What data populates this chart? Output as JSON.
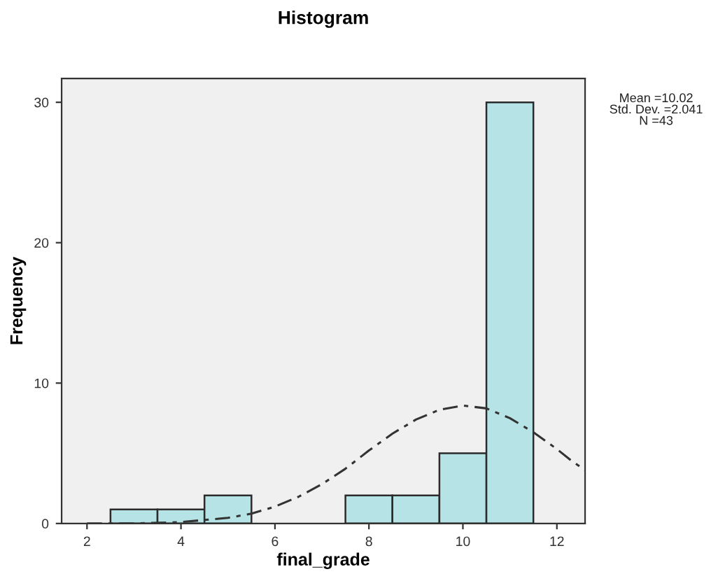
{
  "chart_data": {
    "type": "histogram",
    "title": "Histogram",
    "xlabel": "final_grade",
    "ylabel": "Frequency",
    "bins": [
      2.5,
      3.5,
      4.5,
      5.5,
      6.5,
      7.5,
      8.5,
      9.5,
      10.5,
      11.5
    ],
    "values": [
      1,
      1,
      2,
      0,
      0,
      2,
      2,
      5,
      30
    ],
    "color": "#b6e4e6",
    "series": [
      {
        "type": "line",
        "color": "#333333",
        "line_style": "dashed",
        "x": [
          2,
          3,
          4,
          5,
          5.5,
          6,
          6.5,
          7,
          7.5,
          8,
          8.5,
          9,
          9.5,
          10,
          10.5,
          11,
          11.5,
          12,
          12.3,
          12.6
        ],
        "values": [
          0.0,
          0.0,
          0.1,
          0.4,
          0.7,
          1.2,
          1.9,
          2.8,
          3.9,
          5.2,
          6.4,
          7.4,
          8.1,
          8.4,
          8.2,
          7.5,
          6.5,
          5.3,
          4.5,
          3.8
        ]
      }
    ],
    "xlim": [
      1.46,
      12.6
    ],
    "ylim": [
      0,
      31.7
    ],
    "xticks": [
      2,
      4,
      6,
      8,
      10,
      12
    ],
    "yticks": [
      0,
      10,
      20,
      30
    ],
    "annotations": [
      "Mean =10.02\nStd. Dev. =2.041\nN =43"
    ],
    "grid": false
  }
}
